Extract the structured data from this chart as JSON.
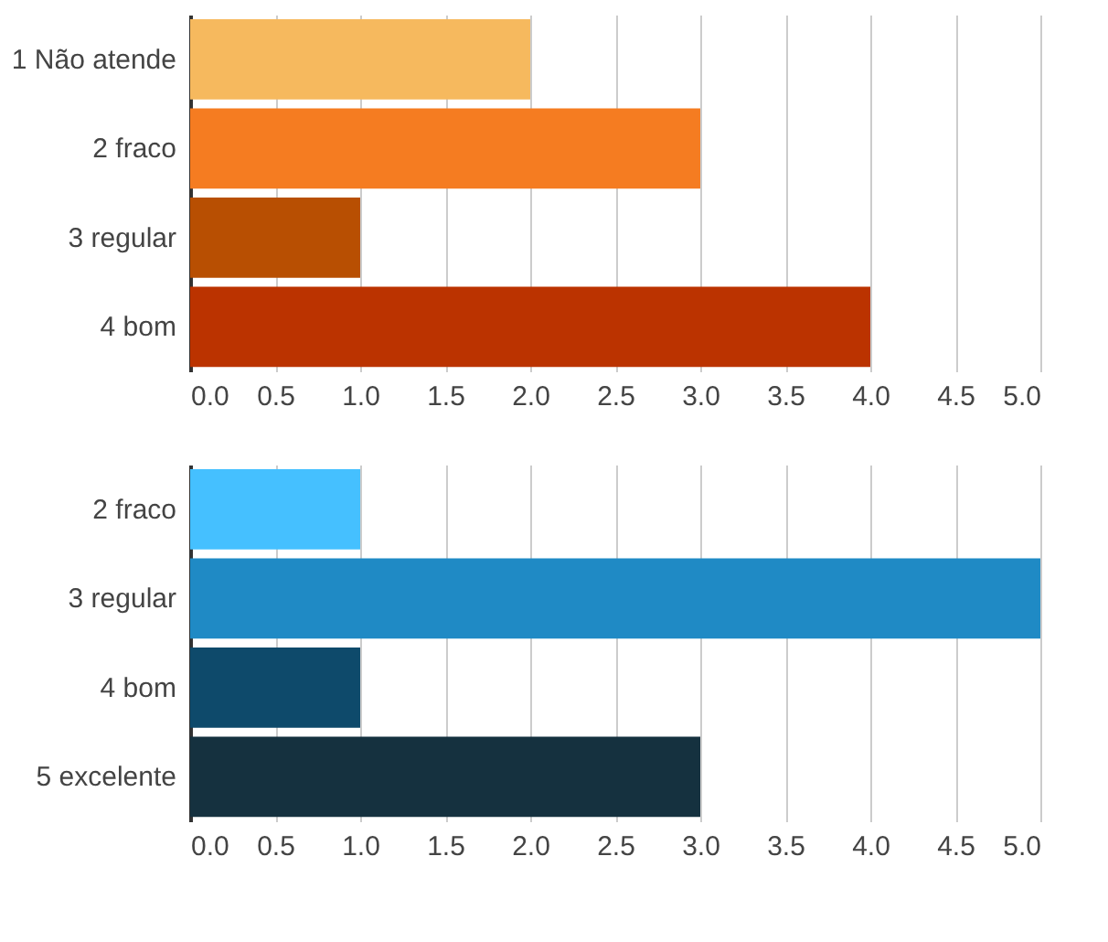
{
  "chart_data": [
    {
      "type": "bar",
      "orientation": "horizontal",
      "categories": [
        "1 Não atende",
        "2 fraco",
        "3 regular",
        "4 bom"
      ],
      "values": [
        2,
        3,
        1,
        4
      ],
      "colors": [
        "#f6b95e",
        "#f57c21",
        "#b84f02",
        "#bb3300"
      ],
      "xlim": [
        0,
        5
      ],
      "xticks": [
        {
          "value": 0,
          "label": "0.0"
        },
        0.5,
        {
          "value": 1,
          "label": "1.0"
        },
        1.5,
        {
          "value": 2,
          "label": "2.0"
        },
        2.5,
        {
          "value": 3,
          "label": "3.0"
        },
        3.5,
        {
          "value": 4,
          "label": "4.0"
        },
        4.5,
        {
          "value": 5,
          "label": "5.0"
        }
      ],
      "grid": "x"
    },
    {
      "type": "bar",
      "orientation": "horizontal",
      "categories": [
        "2 fraco",
        "3 regular",
        "4 bom",
        "5 excelente"
      ],
      "values": [
        1,
        5,
        1,
        3
      ],
      "colors": [
        "#45c0ff",
        "#1f8ac5",
        "#0e4a6b",
        "#15313f"
      ],
      "xlim": [
        0,
        5
      ],
      "xticks": [
        {
          "value": 0,
          "label": "0.0"
        },
        0.5,
        {
          "value": 1,
          "label": "1.0"
        },
        1.5,
        {
          "value": 2,
          "label": "2.0"
        },
        2.5,
        {
          "value": 3,
          "label": "3.0"
        },
        3.5,
        {
          "value": 4,
          "label": "4.0"
        },
        4.5,
        {
          "value": 5,
          "label": "5.0"
        }
      ],
      "grid": "x"
    }
  ]
}
